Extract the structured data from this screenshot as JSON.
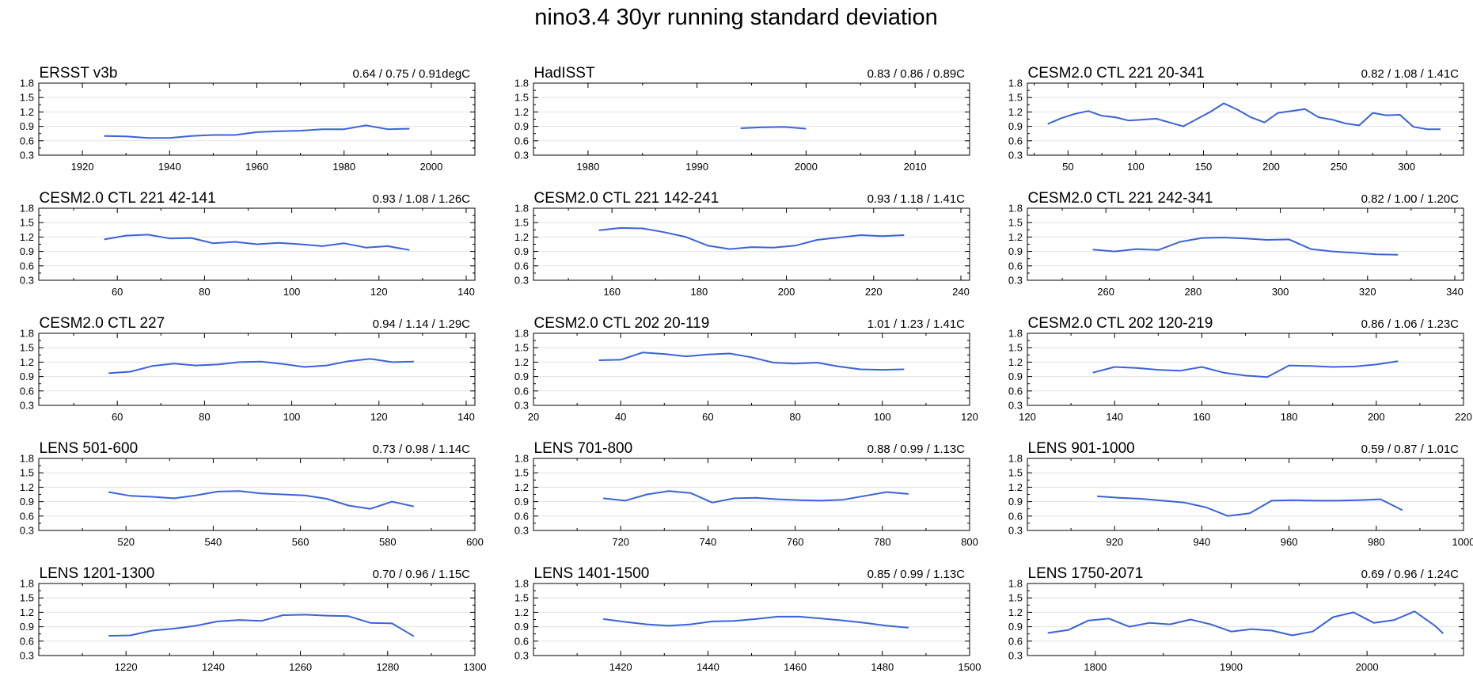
{
  "figure_title": "nino3.4 30yr running standard deviation",
  "series_color": "#3a63d8",
  "chart_data": [
    {
      "type": "line",
      "title": "ERSST v3b",
      "stats": "0.64 / 0.75 / 0.91degC",
      "xlim": [
        1910,
        2010
      ],
      "xticks": [
        1920,
        1940,
        1960,
        1980,
        2000
      ],
      "ylim": [
        0.3,
        1.8
      ],
      "yticks": [
        "0.3",
        "0.6",
        "0.9",
        "1.2",
        "1.5",
        "1.8"
      ],
      "x": [
        1925,
        1930,
        1935,
        1940,
        1945,
        1950,
        1955,
        1960,
        1965,
        1970,
        1975,
        1980,
        1985,
        1990,
        1995
      ],
      "y": [
        0.7,
        0.69,
        0.66,
        0.66,
        0.7,
        0.72,
        0.72,
        0.78,
        0.8,
        0.81,
        0.84,
        0.84,
        0.92,
        0.84,
        0.85
      ]
    },
    {
      "type": "line",
      "title": "HadISST",
      "stats": "0.83 / 0.86 / 0.89C",
      "xlim": [
        1975,
        2015
      ],
      "xticks": [
        1980,
        1990,
        2000,
        2010
      ],
      "ylim": [
        0.3,
        1.8
      ],
      "yticks": [
        "0.3",
        "0.6",
        "0.9",
        "1.2",
        "1.5",
        "1.8"
      ],
      "x": [
        1994,
        1996,
        1998,
        2000
      ],
      "y": [
        0.86,
        0.88,
        0.89,
        0.85
      ]
    },
    {
      "type": "line",
      "title": "CESM2.0 CTL 221 20-341",
      "stats": "0.82 / 1.08 / 1.41C",
      "xlim": [
        20,
        342
      ],
      "xticks": [
        50,
        100,
        150,
        200,
        250,
        300
      ],
      "ylim": [
        0.3,
        1.8
      ],
      "yticks": [
        "0.3",
        "0.6",
        "0.9",
        "1.2",
        "1.5",
        "1.8"
      ],
      "x": [
        35,
        45,
        55,
        65,
        75,
        85,
        95,
        105,
        115,
        125,
        135,
        145,
        155,
        165,
        175,
        185,
        195,
        205,
        215,
        225,
        235,
        245,
        255,
        265,
        275,
        285,
        295,
        305,
        315,
        325
      ],
      "y": [
        0.95,
        1.07,
        1.16,
        1.22,
        1.12,
        1.09,
        1.02,
        1.04,
        1.06,
        0.98,
        0.9,
        1.05,
        1.2,
        1.38,
        1.25,
        1.09,
        0.98,
        1.18,
        1.22,
        1.26,
        1.09,
        1.04,
        0.96,
        0.92,
        1.18,
        1.13,
        1.14,
        0.89,
        0.84,
        0.84
      ]
    },
    {
      "type": "line",
      "title": "CESM2.0 CTL 221 42-141",
      "stats": "0.93 / 1.08 / 1.26C",
      "xlim": [
        42,
        142
      ],
      "xticks": [
        60,
        80,
        100,
        120,
        140
      ],
      "ylim": [
        0.3,
        1.8
      ],
      "yticks": [
        "0.3",
        "0.6",
        "0.9",
        "1.2",
        "1.5",
        "1.8"
      ],
      "x": [
        57,
        62,
        67,
        72,
        77,
        82,
        87,
        92,
        97,
        102,
        107,
        112,
        117,
        122,
        127
      ],
      "y": [
        1.15,
        1.23,
        1.25,
        1.17,
        1.18,
        1.07,
        1.1,
        1.05,
        1.08,
        1.05,
        1.01,
        1.07,
        0.98,
        1.01,
        0.93
      ]
    },
    {
      "type": "line",
      "title": "CESM2.0 CTL 221 142-241",
      "stats": "0.93 / 1.18 / 1.41C",
      "xlim": [
        142,
        242
      ],
      "xticks": [
        160,
        180,
        200,
        220,
        240
      ],
      "ylim": [
        0.3,
        1.8
      ],
      "yticks": [
        "0.3",
        "0.6",
        "0.9",
        "1.2",
        "1.5",
        "1.8"
      ],
      "x": [
        157,
        162,
        167,
        172,
        177,
        182,
        187,
        192,
        197,
        202,
        207,
        212,
        217,
        222,
        227
      ],
      "y": [
        1.34,
        1.39,
        1.38,
        1.3,
        1.2,
        1.02,
        0.95,
        0.99,
        0.98,
        1.02,
        1.14,
        1.19,
        1.24,
        1.22,
        1.24
      ]
    },
    {
      "type": "line",
      "title": "CESM2.0 CTL 221 242-341",
      "stats": "0.82 / 1.00 / 1.20C",
      "xlim": [
        242,
        342
      ],
      "xticks": [
        260,
        280,
        300,
        320,
        340
      ],
      "ylim": [
        0.3,
        1.8
      ],
      "yticks": [
        "0.3",
        "0.6",
        "0.9",
        "1.2",
        "1.5",
        "1.8"
      ],
      "x": [
        257,
        262,
        267,
        272,
        277,
        282,
        287,
        292,
        297,
        302,
        307,
        312,
        317,
        322,
        327
      ],
      "y": [
        0.94,
        0.9,
        0.95,
        0.93,
        1.1,
        1.18,
        1.19,
        1.17,
        1.14,
        1.15,
        0.95,
        0.9,
        0.87,
        0.84,
        0.83
      ]
    },
    {
      "type": "line",
      "title": "CESM2.0 CTL 227",
      "stats": "0.94 / 1.14 / 1.29C",
      "xlim": [
        42,
        142
      ],
      "xticks": [
        60,
        80,
        100,
        120,
        140
      ],
      "ylim": [
        0.3,
        1.8
      ],
      "yticks": [
        "0.3",
        "0.6",
        "0.9",
        "1.2",
        "1.5",
        "1.8"
      ],
      "x": [
        58,
        63,
        68,
        73,
        78,
        83,
        88,
        93,
        98,
        103,
        108,
        113,
        118,
        123,
        128
      ],
      "y": [
        0.97,
        1.0,
        1.12,
        1.17,
        1.13,
        1.15,
        1.2,
        1.21,
        1.16,
        1.1,
        1.13,
        1.22,
        1.27,
        1.2,
        1.21
      ]
    },
    {
      "type": "line",
      "title": "CESM2.0 CTL 202 20-119",
      "stats": "1.01 / 1.23 / 1.41C",
      "xlim": [
        20,
        120
      ],
      "xticks": [
        20,
        40,
        60,
        80,
        100,
        120
      ],
      "ylim": [
        0.3,
        1.8
      ],
      "yticks": [
        "0.3",
        "0.6",
        "0.9",
        "1.2",
        "1.5",
        "1.8"
      ],
      "x": [
        35,
        40,
        45,
        50,
        55,
        60,
        65,
        70,
        75,
        80,
        85,
        90,
        95,
        100,
        105
      ],
      "y": [
        1.24,
        1.25,
        1.4,
        1.37,
        1.32,
        1.36,
        1.38,
        1.3,
        1.19,
        1.17,
        1.19,
        1.11,
        1.05,
        1.04,
        1.05
      ]
    },
    {
      "type": "line",
      "title": "CESM2.0 CTL 202 120-219",
      "stats": "0.86 / 1.06 / 1.23C",
      "xlim": [
        120,
        220
      ],
      "xticks": [
        120,
        140,
        160,
        180,
        200,
        220
      ],
      "ylim": [
        0.3,
        1.8
      ],
      "yticks": [
        "0.3",
        "0.6",
        "0.9",
        "1.2",
        "1.5",
        "1.8"
      ],
      "x": [
        135,
        140,
        145,
        150,
        155,
        160,
        165,
        170,
        175,
        180,
        185,
        190,
        195,
        200,
        205
      ],
      "y": [
        0.98,
        1.1,
        1.08,
        1.04,
        1.02,
        1.1,
        0.98,
        0.92,
        0.89,
        1.13,
        1.12,
        1.1,
        1.11,
        1.15,
        1.22
      ]
    },
    {
      "type": "line",
      "title": "LENS 501-600",
      "stats": "0.73 / 0.98 / 1.14C",
      "xlim": [
        500,
        600
      ],
      "xticks": [
        520,
        540,
        560,
        580,
        600
      ],
      "ylim": [
        0.3,
        1.8
      ],
      "yticks": [
        "0.3",
        "0.6",
        "0.9",
        "1.2",
        "1.5",
        "1.8"
      ],
      "x": [
        516,
        521,
        526,
        531,
        536,
        541,
        546,
        551,
        556,
        561,
        566,
        571,
        576,
        581,
        586
      ],
      "y": [
        1.1,
        1.02,
        1.0,
        0.97,
        1.03,
        1.11,
        1.12,
        1.07,
        1.05,
        1.03,
        0.96,
        0.82,
        0.75,
        0.9,
        0.8
      ]
    },
    {
      "type": "line",
      "title": "LENS 701-800",
      "stats": "0.88 / 0.99 / 1.13C",
      "xlim": [
        700,
        800
      ],
      "xticks": [
        720,
        740,
        760,
        780,
        800
      ],
      "ylim": [
        0.3,
        1.8
      ],
      "yticks": [
        "0.3",
        "0.6",
        "0.9",
        "1.2",
        "1.5",
        "1.8"
      ],
      "x": [
        716,
        721,
        726,
        731,
        736,
        741,
        746,
        751,
        756,
        761,
        766,
        771,
        776,
        781,
        786
      ],
      "y": [
        0.97,
        0.92,
        1.05,
        1.12,
        1.08,
        0.88,
        0.97,
        0.98,
        0.95,
        0.93,
        0.92,
        0.94,
        1.02,
        1.1,
        1.06
      ]
    },
    {
      "type": "line",
      "title": "LENS 901-1000",
      "stats": "0.59 / 0.87 / 1.01C",
      "xlim": [
        900,
        1000
      ],
      "xticks": [
        920,
        940,
        960,
        980,
        1000
      ],
      "ylim": [
        0.3,
        1.8
      ],
      "yticks": [
        "0.3",
        "0.6",
        "0.9",
        "1.2",
        "1.5",
        "1.8"
      ],
      "x": [
        916,
        921,
        926,
        931,
        936,
        941,
        946,
        951,
        956,
        961,
        966,
        971,
        976,
        981,
        986
      ],
      "y": [
        1.01,
        0.98,
        0.96,
        0.92,
        0.88,
        0.78,
        0.6,
        0.66,
        0.92,
        0.93,
        0.92,
        0.92,
        0.93,
        0.95,
        0.72
      ]
    },
    {
      "type": "line",
      "title": "LENS 1201-1300",
      "stats": "0.70 / 0.96 / 1.15C",
      "xlim": [
        1200,
        1300
      ],
      "xticks": [
        1220,
        1240,
        1260,
        1280,
        1300
      ],
      "ylim": [
        0.3,
        1.8
      ],
      "yticks": [
        "0.3",
        "0.6",
        "0.9",
        "1.2",
        "1.5",
        "1.8"
      ],
      "x": [
        1216,
        1221,
        1226,
        1231,
        1236,
        1241,
        1246,
        1251,
        1256,
        1261,
        1266,
        1271,
        1276,
        1281,
        1286
      ],
      "y": [
        0.71,
        0.72,
        0.82,
        0.86,
        0.92,
        1.01,
        1.04,
        1.02,
        1.14,
        1.15,
        1.13,
        1.12,
        0.98,
        0.97,
        0.7
      ]
    },
    {
      "type": "line",
      "title": "LENS 1401-1500",
      "stats": "0.85 / 0.99 / 1.13C",
      "xlim": [
        1400,
        1500
      ],
      "xticks": [
        1420,
        1440,
        1460,
        1480,
        1500
      ],
      "ylim": [
        0.3,
        1.8
      ],
      "yticks": [
        "0.3",
        "0.6",
        "0.9",
        "1.2",
        "1.5",
        "1.8"
      ],
      "x": [
        1416,
        1421,
        1426,
        1431,
        1436,
        1441,
        1446,
        1451,
        1456,
        1461,
        1466,
        1471,
        1476,
        1481,
        1486
      ],
      "y": [
        1.06,
        1.0,
        0.95,
        0.92,
        0.95,
        1.01,
        1.02,
        1.06,
        1.11,
        1.11,
        1.07,
        1.03,
        0.98,
        0.92,
        0.88
      ]
    },
    {
      "type": "line",
      "title": "LENS 1750-2071",
      "stats": "0.69 / 0.96 / 1.24C",
      "xlim": [
        1750,
        2071
      ],
      "xticks": [
        1800,
        1900,
        2000
      ],
      "ylim": [
        0.3,
        1.8
      ],
      "yticks": [
        "0.3",
        "0.6",
        "0.9",
        "1.2",
        "1.5",
        "1.8"
      ],
      "x": [
        1765,
        1780,
        1795,
        1810,
        1825,
        1840,
        1855,
        1870,
        1885,
        1900,
        1915,
        1930,
        1945,
        1960,
        1975,
        1990,
        2005,
        2020,
        2035,
        2050,
        2056
      ],
      "y": [
        0.77,
        0.83,
        1.03,
        1.07,
        0.9,
        0.98,
        0.95,
        1.05,
        0.95,
        0.8,
        0.85,
        0.82,
        0.72,
        0.8,
        1.1,
        1.2,
        0.98,
        1.04,
        1.22,
        0.92,
        0.76
      ]
    }
  ]
}
